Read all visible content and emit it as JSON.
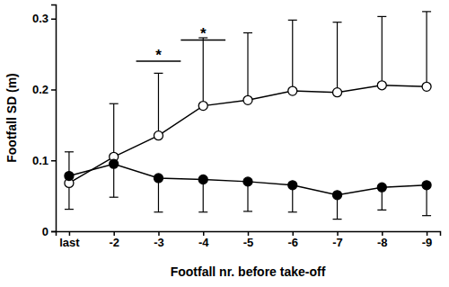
{
  "chart_data": {
    "type": "line",
    "x_label": "Footfall nr. before take-off",
    "y_label": "Footfall SD (m)",
    "categories": [
      "last",
      "-2",
      "-3",
      "-4",
      "-5",
      "-6",
      "-7",
      "-8",
      "-9"
    ],
    "ylim": [
      0,
      0.32
    ],
    "yticks": [
      0,
      0.1,
      0.2,
      0.3
    ],
    "series": [
      {
        "color": "#000000",
        "marker": "open-circle",
        "values": [
          0.068,
          0.105,
          0.135,
          0.177,
          0.185,
          0.198,
          0.196,
          0.206,
          0.204
        ],
        "error_up": [
          0.044,
          0.075,
          0.088,
          0.096,
          0.095,
          0.1,
          0.099,
          0.097,
          0.106
        ]
      },
      {
        "color": "#000000",
        "marker": "filled-circle",
        "values": [
          0.078,
          0.095,
          0.075,
          0.073,
          0.07,
          0.065,
          0.051,
          0.062,
          0.065
        ],
        "error_down": [
          0.047,
          0.047,
          0.048,
          0.046,
          0.042,
          0.038,
          0.034,
          0.032,
          0.043
        ]
      }
    ],
    "annotations": [
      {
        "text": "*",
        "x": "-3",
        "y": 0.24
      },
      {
        "text": "*",
        "x": "-4",
        "y": 0.27
      }
    ]
  }
}
